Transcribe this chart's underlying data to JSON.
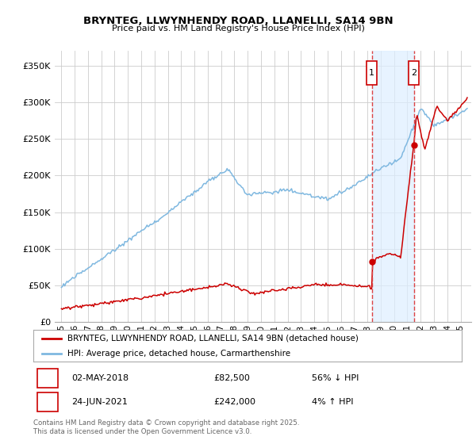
{
  "title": "BRYNTEG, LLWYNHENDY ROAD, LLANELLI, SA14 9BN",
  "subtitle": "Price paid vs. HM Land Registry's House Price Index (HPI)",
  "ylim": [
    0,
    370000
  ],
  "yticks": [
    0,
    50000,
    100000,
    150000,
    200000,
    250000,
    300000,
    350000
  ],
  "ytick_labels": [
    "£0",
    "£50K",
    "£100K",
    "£150K",
    "£200K",
    "£250K",
    "£300K",
    "£350K"
  ],
  "hpi_color": "#7fb8e0",
  "price_color": "#cc0000",
  "marker1_year": 2018.33,
  "marker2_year": 2021.48,
  "marker1_price": 82500,
  "marker2_price": 242000,
  "legend_label1": "BRYNTEG, LLWYNHENDY ROAD, LLANELLI, SA14 9BN (detached house)",
  "legend_label2": "HPI: Average price, detached house, Carmarthenshire",
  "footer": "Contains HM Land Registry data © Crown copyright and database right 2025.\nThis data is licensed under the Open Government Licence v3.0.",
  "bg": "#ffffff",
  "shade_color": "#ddeeff",
  "vline_color": "#dd4444",
  "box_edge_color": "#cc0000",
  "dot_color": "#cc0000"
}
